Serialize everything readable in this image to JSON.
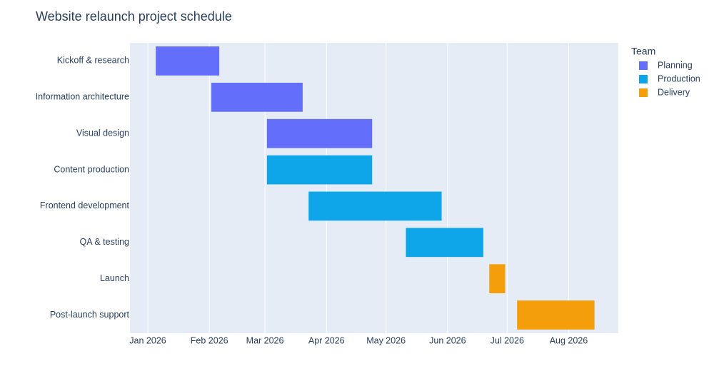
{
  "chart_data": {
    "type": "timeline",
    "title": "Website relaunch project schedule",
    "legend_title": "Team",
    "categories": [
      "Kickoff & research",
      "Information architecture",
      "Visual design",
      "Content production",
      "Frontend development",
      "QA & testing",
      "Launch",
      "Post-launch support"
    ],
    "series": [
      {
        "name": "Planning",
        "color": "#636efa",
        "start": [
          "2026-01-05",
          "2026-02-02",
          "2026-03-02",
          null,
          null,
          null,
          null,
          null
        ],
        "end": [
          "2026-02-06",
          "2026-03-20",
          "2026-04-24",
          null,
          null,
          null,
          null,
          null
        ]
      },
      {
        "name": "Production",
        "color": "#0ea5e9",
        "start": [
          null,
          null,
          null,
          "2026-03-02",
          "2026-03-23",
          "2026-05-11",
          null,
          null
        ],
        "end": [
          null,
          null,
          null,
          "2026-04-24",
          "2026-05-29",
          "2026-06-19",
          null,
          null
        ]
      },
      {
        "name": "Delivery",
        "color": "#f59e0b",
        "start": [
          null,
          null,
          null,
          null,
          null,
          null,
          "2026-06-22",
          "2026-07-06"
        ],
        "end": [
          null,
          null,
          null,
          null,
          null,
          null,
          "2026-06-30",
          "2026-08-14"
        ]
      }
    ],
    "xlim": [
      "2025-12-23",
      "2026-08-26"
    ],
    "xticks": [
      {
        "value": "2026-01-01",
        "label": "Jan 2026"
      },
      {
        "value": "2026-02-01",
        "label": "Feb 2026"
      },
      {
        "value": "2026-03-01",
        "label": "Mar 2026"
      },
      {
        "value": "2026-04-01",
        "label": "Apr 2026"
      },
      {
        "value": "2026-05-01",
        "label": "May 2026"
      },
      {
        "value": "2026-06-01",
        "label": "Jun 2026"
      },
      {
        "value": "2026-07-01",
        "label": "Jul 2026"
      },
      {
        "value": "2026-08-01",
        "label": "Aug 2026"
      }
    ],
    "grid": true,
    "legend_position": "right"
  }
}
